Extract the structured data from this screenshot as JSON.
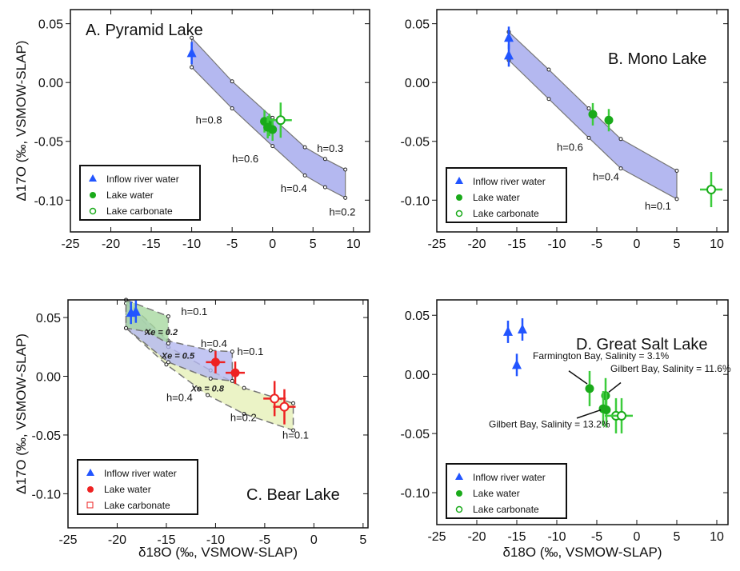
{
  "axis_labels": {
    "y": "Δ17O (‰, VSMOW-SLAP)",
    "x": "δ18O (‰, VSMOW-SLAP)"
  },
  "legend_labels": {
    "inflow": "Inflow river water",
    "lake": "Lake water",
    "carbonate": "Lake carbonate"
  },
  "colors": {
    "inflow": "#2255ff",
    "lake": "#1aaa1a",
    "lake_err": "#3ccc3c",
    "bear_lake": "#ee2222",
    "band_blue": "#b4b8f0",
    "band_green": "#a8d8a0",
    "band_yellow": "#e6f0b8"
  },
  "chart_data": [
    {
      "type": "scatter",
      "title": "A. Pyramid Lake",
      "xlim": [
        -25,
        12
      ],
      "ylim": [
        -0.127,
        0.062
      ],
      "xticks": [
        -25,
        -20,
        -15,
        -10,
        -5,
        0,
        5,
        10
      ],
      "yticks": [
        0.05,
        0,
        -0.05,
        -0.1
      ],
      "ytick_labels": [
        "0.05",
        "0.00",
        "-0.05",
        "-0.10"
      ],
      "series": {
        "inflow": [
          [
            -10,
            0.025
          ]
        ],
        "lake": [
          [
            -1,
            -0.033
          ],
          [
            -0.4,
            -0.036
          ],
          [
            0,
            -0.04
          ],
          [
            -0.6,
            -0.038
          ]
        ],
        "carbonate": [
          [
            1,
            -0.032
          ]
        ]
      },
      "bands": [
        {
          "color": "band_blue",
          "upper": [
            [
              -10,
              0.038
            ],
            [
              -5,
              0.001
            ],
            [
              0,
              -0.03
            ],
            [
              4,
              -0.055
            ],
            [
              6.5,
              -0.065
            ],
            [
              9,
              -0.074
            ]
          ],
          "lower": [
            [
              -10,
              0.013
            ],
            [
              -5,
              -0.022
            ],
            [
              0,
              -0.054
            ],
            [
              4,
              -0.079
            ],
            [
              6.5,
              -0.089
            ],
            [
              9,
              -0.098
            ]
          ]
        }
      ],
      "annotations": [
        {
          "text": "h=0.8",
          "x": -9.5,
          "y": -0.035
        },
        {
          "text": "h=0.6",
          "x": -5,
          "y": -0.068
        },
        {
          "text": "h=0.4",
          "x": 1,
          "y": -0.093
        },
        {
          "text": "h=0.3",
          "x": 5.5,
          "y": -0.059
        },
        {
          "text": "h=0.2",
          "x": 7,
          "y": -0.113
        }
      ]
    },
    {
      "type": "scatter",
      "title": "B. Mono Lake",
      "xlim": [
        -25,
        11.4
      ],
      "ylim": [
        -0.127,
        0.062
      ],
      "xticks": [
        -25,
        -20,
        -15,
        -10,
        -5,
        0,
        5,
        10
      ],
      "yticks": [
        0.05,
        0,
        -0.05,
        -0.1
      ],
      "ytick_labels": [
        "0.05",
        "0.00",
        "-0.05",
        "-0.10"
      ],
      "series": {
        "inflow": [
          [
            -16,
            0.038
          ],
          [
            -16,
            0.023
          ]
        ],
        "lake": [
          [
            -5.5,
            -0.027
          ],
          [
            -3.5,
            -0.032
          ]
        ],
        "carbonate": [
          [
            9.3,
            -0.091
          ]
        ]
      },
      "bands": [
        {
          "color": "band_blue",
          "upper": [
            [
              -16,
              0.043
            ],
            [
              -11,
              0.011
            ],
            [
              -6,
              -0.022
            ],
            [
              -2,
              -0.048
            ],
            [
              5,
              -0.075
            ]
          ],
          "lower": [
            [
              -16,
              0.019
            ],
            [
              -11,
              -0.014
            ],
            [
              -6,
              -0.047
            ],
            [
              -2,
              -0.073
            ],
            [
              5,
              -0.099
            ]
          ]
        }
      ],
      "annotations": [
        {
          "text": "h=0.6",
          "x": -10,
          "y": -0.058
        },
        {
          "text": "h=0.4",
          "x": -5.5,
          "y": -0.083
        },
        {
          "text": "h=0.1",
          "x": 1,
          "y": -0.108
        }
      ]
    },
    {
      "type": "scatter",
      "title": "C. Bear Lake",
      "xlim": [
        -25,
        5.5
      ],
      "ylim": [
        -0.129,
        0.065
      ],
      "xticks": [
        -25,
        -20,
        -15,
        -10,
        -5,
        0,
        5
      ],
      "yticks": [
        0.05,
        0,
        -0.05,
        -0.1
      ],
      "ytick_labels": [
        "0.05",
        "0.00",
        "-0.05",
        "-0.10"
      ],
      "series": {
        "inflow": [
          [
            -18.6,
            0.054
          ],
          [
            -18.1,
            0.055
          ]
        ],
        "lake": [
          [
            -10,
            0.012
          ],
          [
            -8,
            0.003
          ]
        ],
        "carbonate": [
          [
            -4,
            -0.019
          ],
          [
            -3,
            -0.026
          ]
        ]
      },
      "polygons": [
        {
          "color": "band_yellow",
          "points": [
            [
              -19.1,
              0.062
            ],
            [
              -14.8,
              0.025
            ],
            [
              -10.5,
              0.005
            ],
            [
              -7.1,
              -0.01
            ],
            [
              -2.1,
              -0.023
            ],
            [
              -2.1,
              -0.046
            ],
            [
              -7.1,
              -0.032
            ],
            [
              -10.8,
              -0.016
            ],
            [
              -15,
              0.01
            ],
            [
              -19.1,
              0.041
            ]
          ]
        },
        {
          "color": "band_blue",
          "points": [
            [
              -19.1,
              0.065
            ],
            [
              -14.8,
              0.03
            ],
            [
              -10.5,
              0.022
            ],
            [
              -8.3,
              0.021
            ],
            [
              -8.3,
              -0.004
            ],
            [
              -10.5,
              -0.002
            ],
            [
              -14.8,
              0.012
            ],
            [
              -19.1,
              0.041
            ]
          ]
        },
        {
          "color": "band_green",
          "points": [
            [
              -19.1,
              0.065
            ],
            [
              -14.8,
              0.051
            ],
            [
              -14.8,
              0.028
            ],
            [
              -17,
              0.038
            ],
            [
              -19.1,
              0.041
            ]
          ]
        }
      ],
      "annotations": [
        {
          "text": "h=0.1",
          "x": -13.5,
          "y": 0.052
        },
        {
          "text": "h=0.4",
          "x": -11.5,
          "y": 0.025
        },
        {
          "text": "h=0.1",
          "x": -7.8,
          "y": 0.018
        },
        {
          "text": "h=0.4",
          "x": -15,
          "y": -0.021
        },
        {
          "text": "h=0.2",
          "x": -8.5,
          "y": -0.038
        },
        {
          "text": "h=0.1",
          "x": -3.2,
          "y": -0.053
        }
      ],
      "bold_annotations": [
        {
          "text": "Xe = 0.2",
          "x": -17.2,
          "y": 0.035
        },
        {
          "text": "Xe = 0.5",
          "x": -15.5,
          "y": 0.015
        },
        {
          "text": "Xe = 0.8",
          "x": -12.5,
          "y": -0.013
        }
      ]
    },
    {
      "type": "scatter",
      "title": "D. Great Salt Lake",
      "xlim": [
        -25,
        11.4
      ],
      "ylim": [
        -0.127,
        0.063
      ],
      "xticks": [
        -25,
        -20,
        -15,
        -10,
        -5,
        0,
        5,
        10
      ],
      "yticks": [
        0.05,
        0,
        -0.05,
        -0.1
      ],
      "ytick_labels": [
        "0.05",
        "0.00",
        "-0.05",
        "-0.10"
      ],
      "series": {
        "inflow": [
          [
            -16.1,
            0.036
          ],
          [
            -14.3,
            0.038
          ],
          [
            -15,
            0.008
          ]
        ],
        "lake": [
          [
            -5.9,
            -0.012
          ],
          [
            -3.9,
            -0.018
          ],
          [
            -4.2,
            -0.029
          ],
          [
            -3.8,
            -0.03
          ]
        ],
        "carbonate": [
          [
            -2.6,
            -0.035
          ],
          [
            -1.9,
            -0.035
          ]
        ]
      },
      "annotations": [
        {
          "text": "Farmington Bay, Salinity = 3.1%",
          "x": -13,
          "y": 0.013,
          "lx": [
            -8.5,
            -6.2
          ],
          "ly": [
            0.003,
            -0.008
          ]
        },
        {
          "text": "Gilbert Bay, Salinity = 11.6%",
          "x": -3.3,
          "y": 0.002,
          "lx": [
            -2,
            -3.5
          ],
          "ly": [
            -0.007,
            -0.015
          ]
        },
        {
          "text": "Gilbert Bay, Salinity = 13.2%",
          "x": -18.5,
          "y": -0.045,
          "lx": [
            -7.5,
            -4.5
          ],
          "ly": [
            -0.037,
            -0.03
          ]
        }
      ]
    }
  ]
}
